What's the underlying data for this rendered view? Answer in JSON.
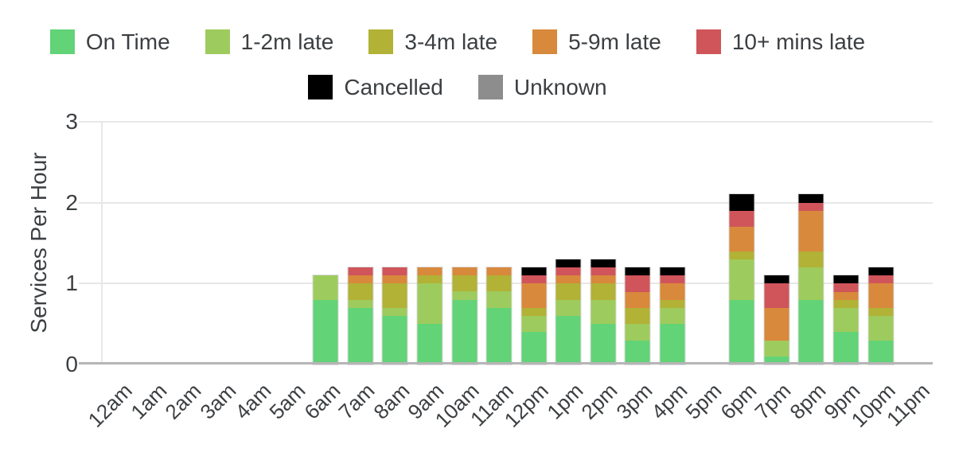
{
  "chart_data": {
    "type": "bar",
    "stacked": true,
    "title": "",
    "xlabel": "",
    "ylabel": "Services Per Hour",
    "ylim": [
      0,
      3
    ],
    "yticks": [
      0,
      1,
      2,
      3
    ],
    "grid": true,
    "legend_position": "top",
    "background_color": "#ffffff",
    "text_color": "#3c3f42",
    "gridline_color": "#e8e8e8",
    "baseline_color": "#b5b5b5",
    "categories": [
      "12am",
      "1am",
      "2am",
      "3am",
      "4am",
      "5am",
      "6am",
      "7am",
      "8am",
      "9am",
      "10am",
      "11am",
      "12pm",
      "1pm",
      "2pm",
      "3pm",
      "4pm",
      "5pm",
      "6pm",
      "7pm",
      "8pm",
      "9pm",
      "10pm",
      "11pm"
    ],
    "series": [
      {
        "name": "On Time",
        "color": "#62d377",
        "values": [
          0,
          0,
          0,
          0,
          0,
          0,
          0.8,
          0.7,
          0.6,
          0.5,
          0.8,
          0.7,
          0.4,
          0.6,
          0.5,
          0.3,
          0.5,
          0,
          0.8,
          0.1,
          0.8,
          0.4,
          0.3,
          0
        ]
      },
      {
        "name": "1-2m late",
        "color": "#9ecb5d",
        "values": [
          0,
          0,
          0,
          0,
          0,
          0,
          0.3,
          0.1,
          0.1,
          0.5,
          0.1,
          0.2,
          0.2,
          0.2,
          0.3,
          0.2,
          0.2,
          0,
          0.5,
          0.2,
          0.4,
          0.3,
          0.3,
          0
        ]
      },
      {
        "name": "3-4m late",
        "color": "#b1b236",
        "values": [
          0,
          0,
          0,
          0,
          0,
          0,
          0,
          0.2,
          0.3,
          0.1,
          0.2,
          0.2,
          0.1,
          0.2,
          0.2,
          0.2,
          0.1,
          0,
          0.1,
          0,
          0.2,
          0.1,
          0.1,
          0
        ]
      },
      {
        "name": "5-9m late",
        "color": "#d8893c",
        "values": [
          0,
          0,
          0,
          0,
          0,
          0,
          0,
          0.1,
          0.1,
          0.1,
          0.1,
          0.1,
          0.3,
          0.1,
          0.1,
          0.2,
          0.2,
          0,
          0.3,
          0.4,
          0.5,
          0.1,
          0.3,
          0
        ]
      },
      {
        "name": "10+ mins late",
        "color": "#d0555a",
        "values": [
          0,
          0,
          0,
          0,
          0,
          0,
          0,
          0.1,
          0.1,
          0,
          0,
          0,
          0.1,
          0.1,
          0.1,
          0.2,
          0.1,
          0,
          0.2,
          0.3,
          0.1,
          0.1,
          0.1,
          0
        ]
      },
      {
        "name": "Cancelled",
        "color": "#000000",
        "values": [
          0,
          0,
          0,
          0,
          0,
          0,
          0,
          0,
          0,
          0,
          0,
          0,
          0.1,
          0.1,
          0.1,
          0.1,
          0.1,
          0,
          0.2,
          0.1,
          0.1,
          0.1,
          0.1,
          0
        ]
      },
      {
        "name": "Unknown",
        "color": "#8d8d8d",
        "values": [
          0,
          0,
          0,
          0,
          0,
          0,
          0,
          0,
          0,
          0,
          0,
          0,
          0,
          0,
          0,
          0,
          0,
          0,
          0,
          0,
          0,
          0,
          0,
          0
        ]
      }
    ],
    "legend_rows": [
      [
        "On Time",
        "1-2m late",
        "3-4m late",
        "5-9m late",
        "10+ mins late"
      ],
      [
        "Cancelled",
        "Unknown"
      ]
    ]
  }
}
